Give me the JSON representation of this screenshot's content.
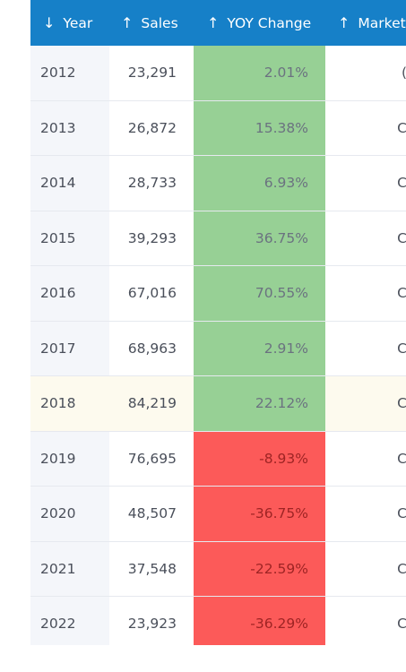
{
  "header": {
    "year": {
      "arrow": "↓",
      "label": "Year"
    },
    "sales": {
      "arrow": "↑",
      "label": "Sales"
    },
    "yoy": {
      "arrow": "↑",
      "label": "YOY Change"
    },
    "market": {
      "arrow": "↑",
      "label": "Market"
    }
  },
  "colors": {
    "header_bg": "#1680c8",
    "positive": "#97d095",
    "negative": "#fc5a59",
    "highlight_row": "#fdfaee"
  },
  "rows": [
    {
      "year": "2012",
      "sales": "23,291",
      "yoy": "2.01%",
      "market": "(",
      "trend": "pos"
    },
    {
      "year": "2013",
      "sales": "26,872",
      "yoy": "15.38%",
      "market": "C",
      "trend": "pos"
    },
    {
      "year": "2014",
      "sales": "28,733",
      "yoy": "6.93%",
      "market": "C",
      "trend": "pos"
    },
    {
      "year": "2015",
      "sales": "39,293",
      "yoy": "36.75%",
      "market": "C",
      "trend": "pos"
    },
    {
      "year": "2016",
      "sales": "67,016",
      "yoy": "70.55%",
      "market": "C",
      "trend": "pos"
    },
    {
      "year": "2017",
      "sales": "68,963",
      "yoy": "2.91%",
      "market": "C",
      "trend": "pos"
    },
    {
      "year": "2018",
      "sales": "84,219",
      "yoy": "22.12%",
      "market": "C",
      "trend": "pos",
      "highlight": true
    },
    {
      "year": "2019",
      "sales": "76,695",
      "yoy": "-8.93%",
      "market": "C",
      "trend": "neg"
    },
    {
      "year": "2020",
      "sales": "48,507",
      "yoy": "-36.75%",
      "market": "C",
      "trend": "neg"
    },
    {
      "year": "2021",
      "sales": "37,548",
      "yoy": "-22.59%",
      "market": "C",
      "trend": "neg"
    },
    {
      "year": "2022",
      "sales": "23,923",
      "yoy": "-36.29%",
      "market": "C",
      "trend": "neg"
    }
  ]
}
